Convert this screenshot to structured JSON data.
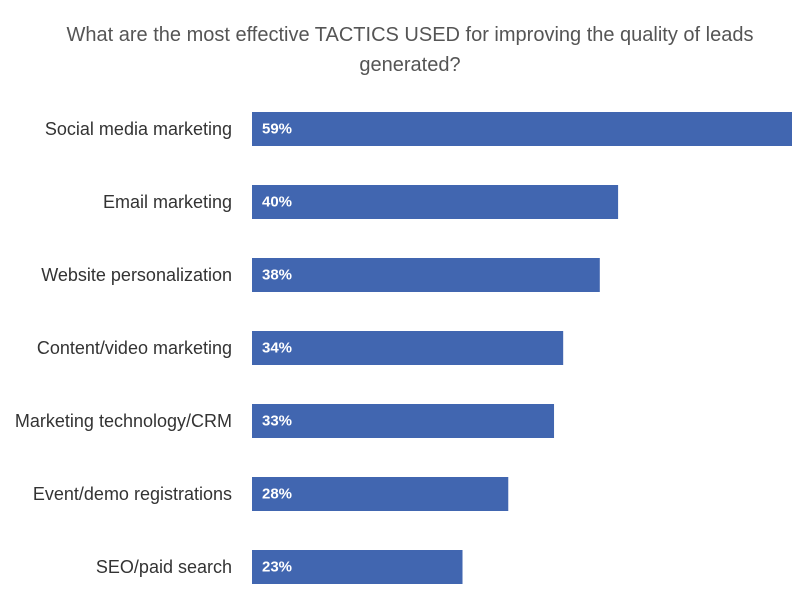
{
  "chart_data": {
    "type": "bar",
    "orientation": "horizontal",
    "title": "What are the most effective TACTICS USED for improving the quality of leads generated?",
    "categories": [
      "Social media marketing",
      "Email marketing",
      "Website personalization",
      "Content/video marketing",
      "Marketing technology/CRM",
      "Event/demo registrations",
      "SEO/paid search"
    ],
    "values": [
      59,
      40,
      38,
      34,
      33,
      28,
      23
    ],
    "value_labels": [
      "59%",
      "40%",
      "38%",
      "34%",
      "33%",
      "28%",
      "23%"
    ],
    "xlim": [
      0,
      59
    ],
    "grid": false,
    "legend": "none",
    "bar_color": "#4166b0",
    "label_color": "#ffffff"
  }
}
